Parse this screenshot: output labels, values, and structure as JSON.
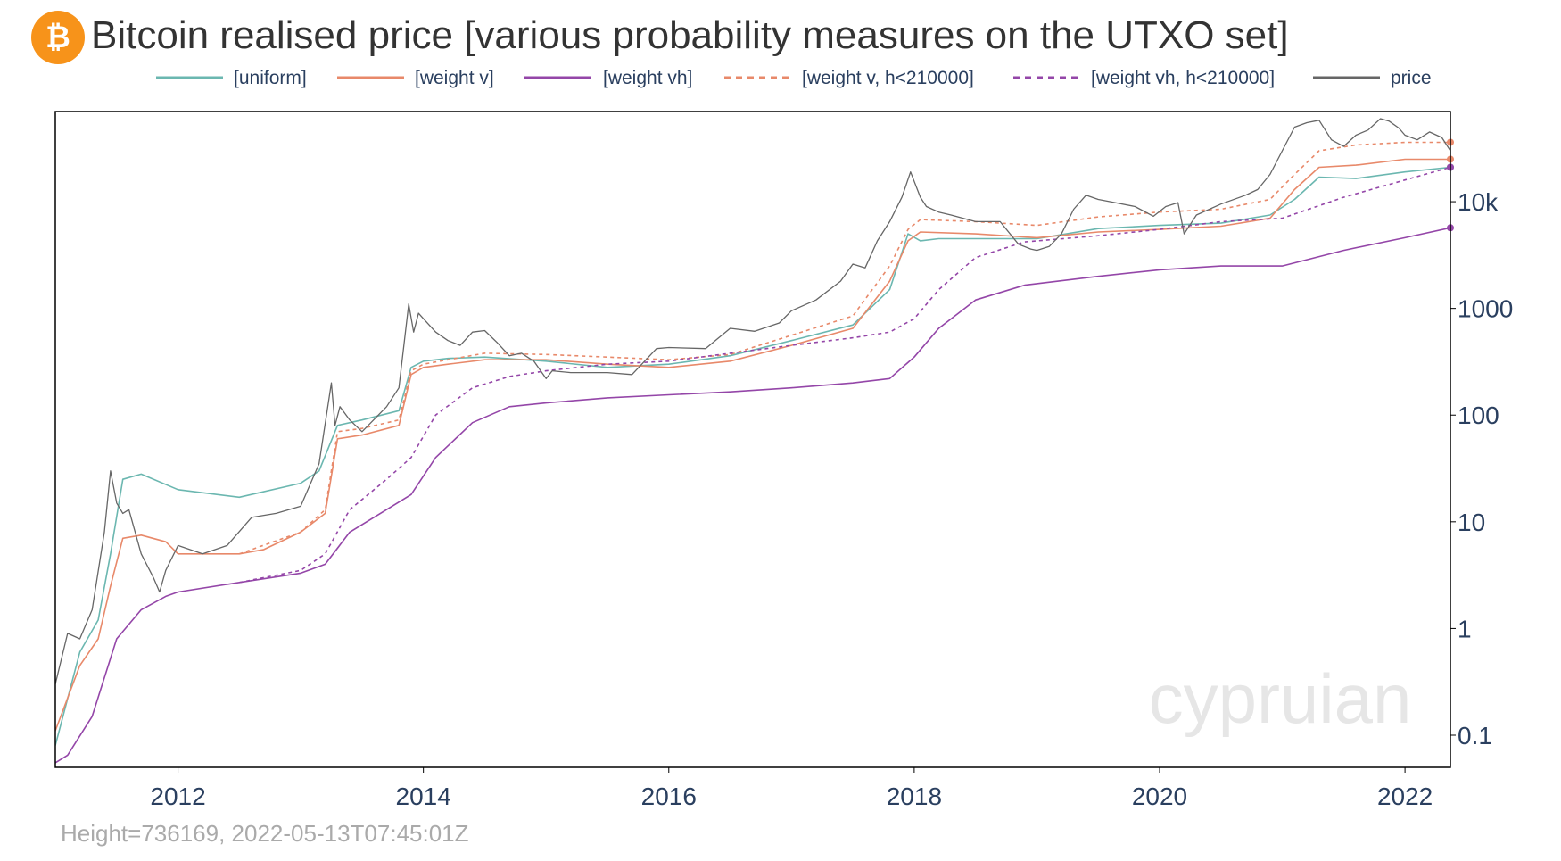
{
  "header": {
    "title": "Bitcoin realised price [various probability measures on the UTXO set]",
    "logo_symbol": "₿",
    "logo_color": "#f7931a"
  },
  "footer": {
    "info": "Height=736169,  2022-05-13T07:45:01Z",
    "watermark": "cypruian"
  },
  "chart_data": {
    "type": "line",
    "title": "Bitcoin realised price [various probability measures on the UTXO set]",
    "xlabel": "",
    "ylabel": "",
    "x_scale": "time",
    "y_scale": "log",
    "xlim": [
      2011.0,
      2022.37
    ],
    "ylim": [
      0.05,
      70000
    ],
    "x_ticks": [
      2012,
      2014,
      2016,
      2018,
      2020,
      2022
    ],
    "x_tick_labels": [
      "2012",
      "2014",
      "2016",
      "2018",
      "2020",
      "2022"
    ],
    "y_ticks": [
      0.1,
      1,
      10,
      100,
      1000,
      10000
    ],
    "y_tick_labels": [
      "0.1",
      "1",
      "10",
      "100",
      "1000",
      "10k"
    ],
    "y_axis_side": "right",
    "grid": false,
    "legend_position": "top",
    "series": [
      {
        "name": "[uniform]",
        "color": "#6bb7b0",
        "dash": "solid",
        "x": [
          2011.0,
          2011.2,
          2011.35,
          2011.45,
          2011.55,
          2011.7,
          2012.0,
          2012.5,
          2013.0,
          2013.15,
          2013.3,
          2013.5,
          2013.8,
          2013.9,
          2014.0,
          2014.2,
          2014.5,
          2015.0,
          2015.5,
          2016.0,
          2016.5,
          2017.0,
          2017.5,
          2017.8,
          2017.95,
          2018.05,
          2018.2,
          2018.5,
          2019.0,
          2019.5,
          2020.0,
          2020.5,
          2020.9,
          2021.1,
          2021.3,
          2021.6,
          2022.0,
          2022.37
        ],
        "y": [
          0.08,
          0.6,
          1.2,
          5,
          25,
          28,
          20,
          17,
          23,
          30,
          80,
          90,
          110,
          280,
          320,
          340,
          350,
          320,
          280,
          300,
          360,
          500,
          700,
          1500,
          5000,
          4300,
          4500,
          4500,
          4500,
          5600,
          6000,
          6300,
          7500,
          10500,
          17000,
          16500,
          19000,
          21000
        ]
      },
      {
        "name": "[weight v]",
        "color": "#e8896a",
        "dash": "solid",
        "x": [
          2011.0,
          2011.2,
          2011.35,
          2011.45,
          2011.55,
          2011.7,
          2011.9,
          2012.0,
          2012.5,
          2012.7,
          2013.0,
          2013.2,
          2013.3,
          2013.5,
          2013.8,
          2013.9,
          2014.0,
          2014.2,
          2014.5,
          2015.0,
          2015.5,
          2016.0,
          2016.5,
          2017.0,
          2017.5,
          2017.8,
          2017.95,
          2018.05,
          2018.5,
          2019.0,
          2019.5,
          2020.0,
          2020.5,
          2020.9,
          2021.1,
          2021.3,
          2021.6,
          2022.0,
          2022.37
        ],
        "y": [
          0.11,
          0.45,
          0.8,
          2.5,
          7,
          7.5,
          6.5,
          5,
          5,
          5.5,
          8,
          12,
          60,
          65,
          80,
          240,
          280,
          300,
          330,
          330,
          300,
          280,
          320,
          450,
          650,
          1800,
          4300,
          5200,
          5000,
          4600,
          5200,
          5500,
          5900,
          7000,
          13000,
          21000,
          22000,
          25000,
          25000
        ]
      },
      {
        "name": "[weight vh]",
        "color": "#9446a8",
        "dash": "solid",
        "x": [
          2011.0,
          2011.1,
          2011.3,
          2011.5,
          2011.7,
          2011.9,
          2012.0,
          2012.5,
          2013.0,
          2013.2,
          2013.4,
          2013.7,
          2013.9,
          2014.1,
          2014.4,
          2014.7,
          2015.0,
          2015.5,
          2016.0,
          2016.5,
          2017.0,
          2017.5,
          2017.8,
          2018.0,
          2018.2,
          2018.5,
          2018.9,
          2019.5,
          2020.0,
          2020.5,
          2021.0,
          2021.5,
          2022.0,
          2022.37
        ],
        "y": [
          0.055,
          0.065,
          0.15,
          0.8,
          1.5,
          2,
          2.2,
          2.7,
          3.3,
          4,
          8,
          13,
          18,
          40,
          85,
          120,
          130,
          145,
          155,
          165,
          180,
          200,
          220,
          350,
          650,
          1200,
          1650,
          2000,
          2300,
          2500,
          2500,
          3500,
          4600,
          5700
        ]
      },
      {
        "name": "[weight v, h<210000]",
        "color": "#e8896a",
        "dash": "dashed",
        "x": [
          2012.5,
          2013.0,
          2013.2,
          2013.3,
          2013.5,
          2013.8,
          2013.9,
          2014.0,
          2014.2,
          2014.5,
          2015.0,
          2015.5,
          2016.0,
          2016.5,
          2017.0,
          2017.5,
          2017.8,
          2017.95,
          2018.05,
          2018.5,
          2019.0,
          2019.5,
          2020.0,
          2020.5,
          2020.9,
          2021.1,
          2021.3,
          2021.6,
          2022.0,
          2022.37
        ],
        "y": [
          5,
          8,
          13,
          70,
          75,
          90,
          260,
          300,
          330,
          380,
          370,
          350,
          330,
          370,
          560,
          850,
          2500,
          5500,
          6800,
          6500,
          6000,
          7200,
          8000,
          8500,
          10500,
          18000,
          30000,
          34000,
          36000,
          36000
        ]
      },
      {
        "name": "[weight vh, h<210000]",
        "color": "#9446a8",
        "dash": "dashed",
        "x": [
          2012.5,
          2013.0,
          2013.2,
          2013.4,
          2013.7,
          2013.9,
          2014.1,
          2014.4,
          2014.7,
          2015.0,
          2015.5,
          2016.0,
          2016.5,
          2017.0,
          2017.5,
          2017.8,
          2018.0,
          2018.2,
          2018.5,
          2018.9,
          2019.5,
          2020.0,
          2020.5,
          2021.0,
          2021.5,
          2022.0,
          2022.37
        ],
        "y": [
          2.7,
          3.5,
          5,
          13,
          25,
          40,
          100,
          180,
          230,
          260,
          300,
          320,
          380,
          450,
          530,
          600,
          800,
          1500,
          3000,
          4200,
          4800,
          5500,
          6500,
          7000,
          11000,
          16000,
          21000
        ]
      },
      {
        "name": "price",
        "color": "#666666",
        "dash": "solid",
        "x": [
          2011.0,
          2011.1,
          2011.2,
          2011.3,
          2011.4,
          2011.45,
          2011.5,
          2011.55,
          2011.6,
          2011.7,
          2011.8,
          2011.85,
          2011.9,
          2012.0,
          2012.2,
          2012.4,
          2012.6,
          2012.8,
          2013.0,
          2013.15,
          2013.25,
          2013.28,
          2013.32,
          2013.4,
          2013.5,
          2013.7,
          2013.8,
          2013.88,
          2013.92,
          2013.96,
          2014.0,
          2014.1,
          2014.2,
          2014.3,
          2014.4,
          2014.5,
          2014.6,
          2014.7,
          2014.8,
          2014.9,
          2015.0,
          2015.05,
          2015.2,
          2015.5,
          2015.7,
          2015.9,
          2016.0,
          2016.3,
          2016.5,
          2016.7,
          2016.9,
          2017.0,
          2017.2,
          2017.4,
          2017.5,
          2017.6,
          2017.7,
          2017.8,
          2017.9,
          2017.97,
          2018.05,
          2018.1,
          2018.2,
          2018.3,
          2018.5,
          2018.7,
          2018.85,
          2018.95,
          2019.0,
          2019.1,
          2019.2,
          2019.3,
          2019.4,
          2019.5,
          2019.6,
          2019.8,
          2019.95,
          2020.05,
          2020.15,
          2020.2,
          2020.3,
          2020.5,
          2020.7,
          2020.8,
          2020.9,
          2021.0,
          2021.1,
          2021.2,
          2021.3,
          2021.4,
          2021.5,
          2021.6,
          2021.7,
          2021.8,
          2021.87,
          2021.95,
          2022.0,
          2022.1,
          2022.2,
          2022.3,
          2022.37
        ],
        "y": [
          0.3,
          0.9,
          0.8,
          1.5,
          8,
          30,
          15,
          12,
          13,
          5,
          3,
          2.2,
          3.5,
          6,
          5,
          6,
          11,
          12,
          14,
          35,
          200,
          80,
          120,
          90,
          70,
          120,
          180,
          1100,
          600,
          900,
          800,
          600,
          500,
          450,
          600,
          620,
          480,
          360,
          380,
          320,
          220,
          260,
          250,
          250,
          240,
          420,
          430,
          420,
          650,
          610,
          730,
          950,
          1200,
          1800,
          2600,
          2400,
          4300,
          6500,
          11000,
          19000,
          11000,
          9000,
          8000,
          7500,
          6500,
          6500,
          4000,
          3600,
          3500,
          3800,
          5000,
          8500,
          11500,
          10500,
          10000,
          9000,
          7300,
          9000,
          9800,
          5000,
          7500,
          9500,
          11500,
          13000,
          18000,
          30000,
          50000,
          55000,
          58000,
          38000,
          33000,
          42000,
          47000,
          60000,
          57000,
          49000,
          42000,
          38000,
          45000,
          40000,
          30000
        ]
      }
    ]
  }
}
